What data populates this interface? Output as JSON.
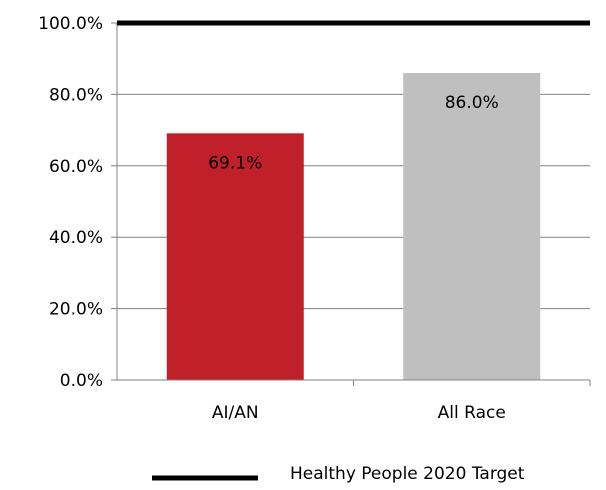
{
  "chart_data": {
    "type": "bar",
    "title": "",
    "xlabel": "",
    "ylabel": "",
    "categories": [
      "AI/AN",
      "All Race"
    ],
    "values": [
      69.1,
      86.0
    ],
    "value_labels": [
      "69.1%",
      "86.0%"
    ],
    "bar_colors": [
      "#c0202a",
      "#bfbfbf"
    ],
    "ylim": [
      0,
      100
    ],
    "yticks": [
      0,
      20,
      40,
      60,
      80,
      100
    ],
    "ytick_labels": [
      "0.0%",
      "20.0%",
      "40.0%",
      "60.0%",
      "80.0%",
      "100.0%"
    ],
    "grid": true,
    "gridline_color": "#808080",
    "reference_line": {
      "name": "Healthy People 2020 Target",
      "value": 100,
      "color": "#000000"
    },
    "legend": {
      "position": "bottom-right",
      "entries": [
        "Healthy People 2020 Target"
      ]
    }
  }
}
